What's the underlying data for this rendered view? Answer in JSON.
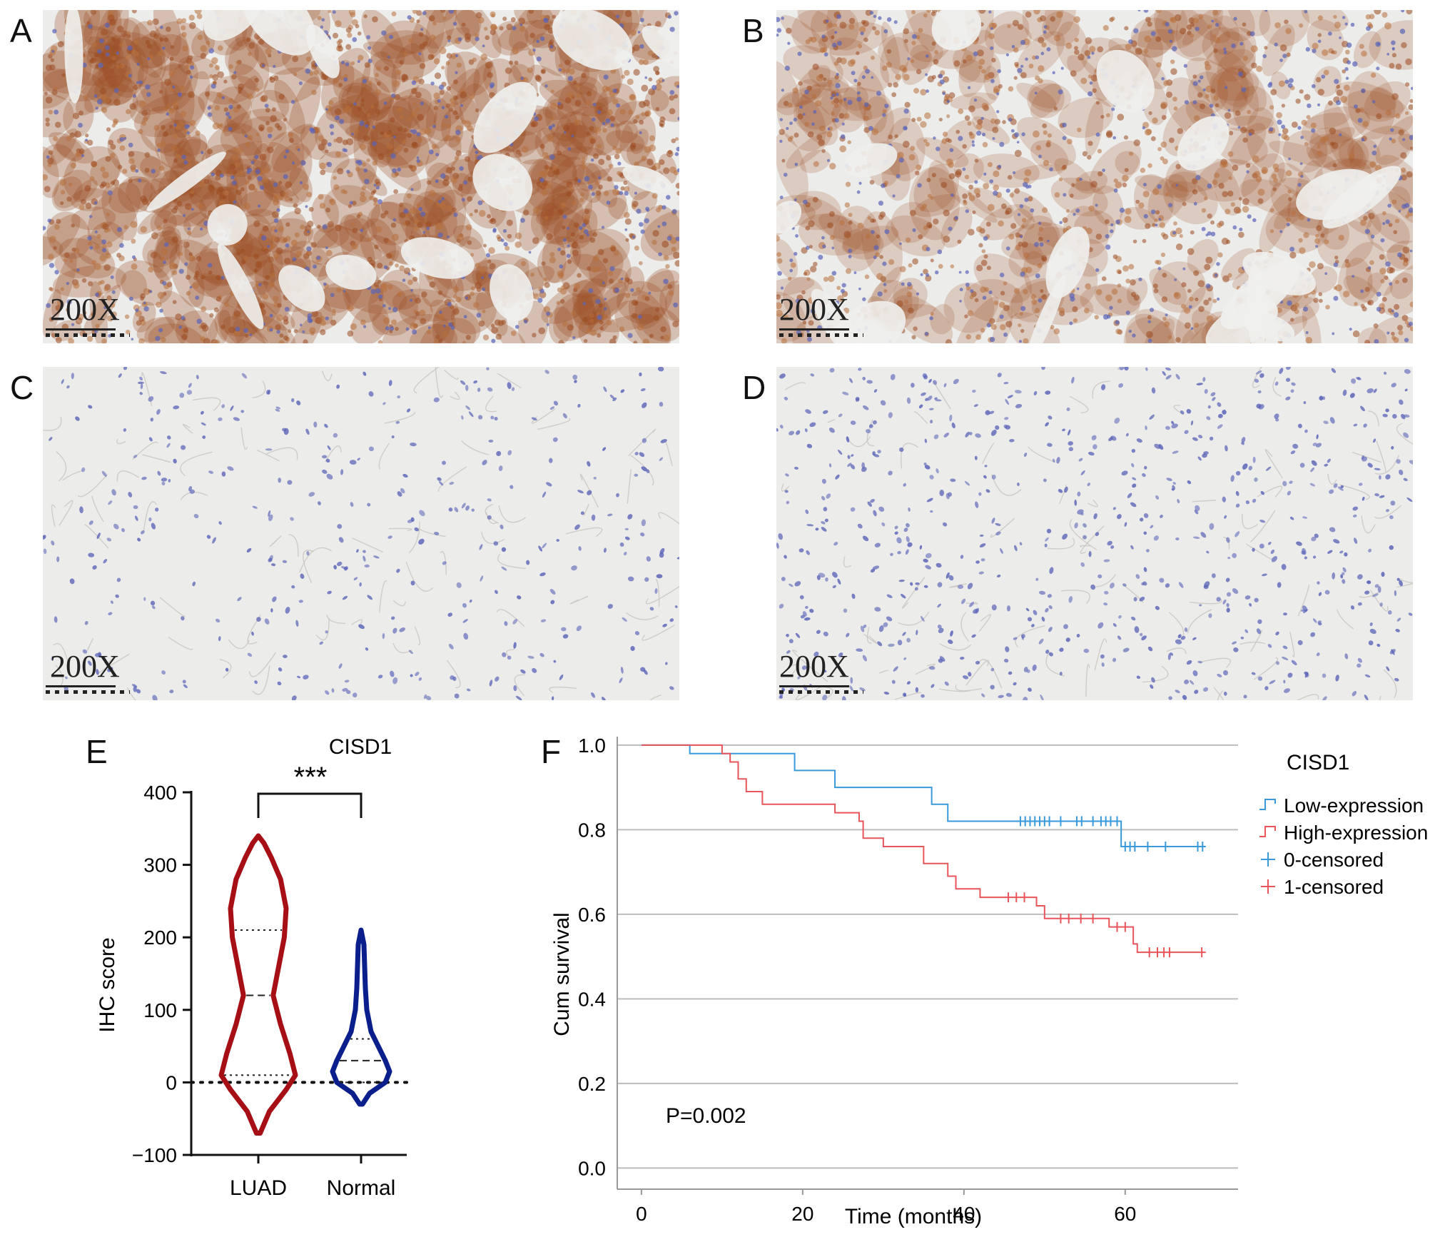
{
  "panels": {
    "A": {
      "letter": "A",
      "magnification": "200X",
      "stain": "strong"
    },
    "B": {
      "letter": "B",
      "magnification": "200X",
      "stain": "moderate"
    },
    "C": {
      "letter": "C",
      "magnification": "200X",
      "stain": "none"
    },
    "D": {
      "letter": "D",
      "magnification": "200X",
      "stain": "none"
    },
    "E": {
      "letter": "E"
    },
    "F": {
      "letter": "F"
    }
  },
  "colors": {
    "luad": "#a50f15",
    "normal": "#0b1f8c",
    "low_expression": "#3a9ad9",
    "high_expression": "#e8555a",
    "tissue_bg": "#ececea",
    "dab_brown": "#9c4a1f",
    "hematoxylin": "#5a64b8"
  },
  "chart_data": [
    {
      "type": "violin",
      "title": "CISD1",
      "xlabel": "",
      "ylabel": "IHC score",
      "categories": [
        "LUAD",
        "Normal"
      ],
      "ylim": [
        -100,
        400
      ],
      "yticks": [
        "400",
        "300",
        "200",
        "100",
        "0",
        "−100"
      ],
      "significance": "***",
      "reference_line_y": 0,
      "series": [
        {
          "name": "LUAD",
          "min": -70,
          "max": 340,
          "median": 120,
          "q1": 10,
          "q3": 210,
          "density": [
            [
              -70,
              0.02
            ],
            [
              -40,
              0.12
            ],
            [
              -10,
              0.3
            ],
            [
              10,
              0.4
            ],
            [
              40,
              0.34
            ],
            [
              80,
              0.24
            ],
            [
              120,
              0.16
            ],
            [
              160,
              0.22
            ],
            [
              200,
              0.28
            ],
            [
              240,
              0.3
            ],
            [
              280,
              0.24
            ],
            [
              310,
              0.14
            ],
            [
              330,
              0.06
            ],
            [
              340,
              0.0
            ]
          ]
        },
        {
          "name": "Normal",
          "min": -30,
          "max": 210,
          "median": 30,
          "q1": 0,
          "q3": 60,
          "density": [
            [
              -30,
              0.02
            ],
            [
              -15,
              0.12
            ],
            [
              0,
              0.34
            ],
            [
              15,
              0.4
            ],
            [
              30,
              0.34
            ],
            [
              50,
              0.24
            ],
            [
              70,
              0.14
            ],
            [
              100,
              0.08
            ],
            [
              130,
              0.06
            ],
            [
              160,
              0.05
            ],
            [
              190,
              0.04
            ],
            [
              210,
              0.0
            ]
          ]
        }
      ]
    },
    {
      "type": "line",
      "subtype": "kaplan-meier",
      "title": "",
      "xlabel": "Time (months)",
      "ylabel": "Cum survival",
      "xlim": [
        -3,
        74
      ],
      "ylim": [
        -0.05,
        1.02
      ],
      "xticks": [
        "0",
        "20",
        "40",
        "60"
      ],
      "yticks": [
        "1.0",
        "0.8",
        "0.6",
        "0.4",
        "0.2",
        "0.0"
      ],
      "grid": true,
      "legend_title": "CISD1",
      "legend_position": "top-right",
      "legend": [
        "Low-expression",
        "High-expression",
        "0-censored",
        "1-censored"
      ],
      "annotation": "P=0.002",
      "series": [
        {
          "name": "Low-expression",
          "steps": [
            [
              0,
              1.0
            ],
            [
              6,
              0.98
            ],
            [
              13,
              0.98
            ],
            [
              19,
              0.94
            ],
            [
              24,
              0.9
            ],
            [
              36,
              0.86
            ],
            [
              38,
              0.82
            ],
            [
              59.5,
              0.76
            ],
            [
              70,
              0.76
            ]
          ],
          "censored": [
            [
              47,
              0.82
            ],
            [
              47.6,
              0.82
            ],
            [
              48.2,
              0.82
            ],
            [
              48.8,
              0.82
            ],
            [
              49.4,
              0.82
            ],
            [
              50,
              0.82
            ],
            [
              50.6,
              0.82
            ],
            [
              52,
              0.82
            ],
            [
              54,
              0.82
            ],
            [
              54.6,
              0.82
            ],
            [
              56,
              0.82
            ],
            [
              57,
              0.82
            ],
            [
              57.6,
              0.82
            ],
            [
              58.2,
              0.82
            ],
            [
              59,
              0.82
            ],
            [
              60,
              0.76
            ],
            [
              60.6,
              0.76
            ],
            [
              61.2,
              0.76
            ],
            [
              62.8,
              0.76
            ],
            [
              65,
              0.76
            ],
            [
              69,
              0.76
            ],
            [
              69.6,
              0.76
            ]
          ]
        },
        {
          "name": "High-expression",
          "steps": [
            [
              0,
              1.0
            ],
            [
              10,
              0.98
            ],
            [
              11,
              0.96
            ],
            [
              12,
              0.92
            ],
            [
              13,
              0.89
            ],
            [
              15,
              0.86
            ],
            [
              24,
              0.84
            ],
            [
              27,
              0.82
            ],
            [
              27.5,
              0.78
            ],
            [
              30,
              0.76
            ],
            [
              35,
              0.72
            ],
            [
              38,
              0.69
            ],
            [
              39,
              0.66
            ],
            [
              42,
              0.64
            ],
            [
              49,
              0.62
            ],
            [
              50,
              0.59
            ],
            [
              55,
              0.59
            ],
            [
              58,
              0.57
            ],
            [
              61,
              0.53
            ],
            [
              61.5,
              0.51
            ],
            [
              70,
              0.51
            ]
          ],
          "censored": [
            [
              45.5,
              0.64
            ],
            [
              46.5,
              0.64
            ],
            [
              47.5,
              0.64
            ],
            [
              52,
              0.59
            ],
            [
              53,
              0.59
            ],
            [
              54.5,
              0.59
            ],
            [
              56,
              0.59
            ],
            [
              59,
              0.57
            ],
            [
              60,
              0.57
            ],
            [
              63,
              0.51
            ],
            [
              64,
              0.51
            ],
            [
              64.8,
              0.51
            ],
            [
              65.5,
              0.51
            ],
            [
              69.5,
              0.51
            ]
          ]
        }
      ]
    }
  ]
}
